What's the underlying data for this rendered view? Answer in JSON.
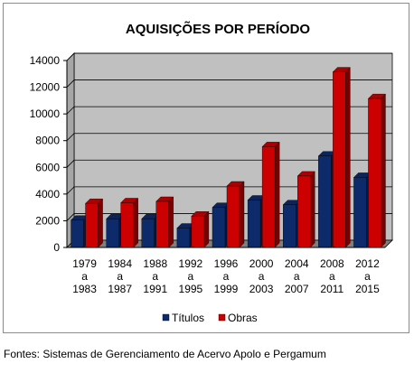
{
  "source_note": "Fontes: Sistemas de Gerenciamento de Acervo Apolo e Pergamum",
  "colors": {
    "titulos": "#0d2a6b",
    "obras": "#cc0000",
    "plot_back": "#c0c0c0",
    "plot_floor": "#7f7f7f"
  },
  "chart_data": {
    "type": "bar",
    "title": "AQUISIÇÕES POR PERÍODO",
    "categories": [
      [
        "1979",
        "a",
        "1983"
      ],
      [
        "1984",
        "a",
        "1987"
      ],
      [
        "1988",
        "a",
        "1991"
      ],
      [
        "1992",
        "a",
        "1995"
      ],
      [
        "1996",
        "a",
        "1999"
      ],
      [
        "2000",
        "a",
        "2003"
      ],
      [
        "2004",
        "a",
        "2007"
      ],
      [
        "2008",
        "a",
        "2011"
      ],
      [
        "2012",
        "a",
        "2015"
      ]
    ],
    "series": [
      {
        "name": "Títulos",
        "values": [
          2050,
          2150,
          2150,
          1450,
          3000,
          3550,
          3200,
          6850,
          5250
        ]
      },
      {
        "name": "Obras",
        "values": [
          3300,
          3350,
          3450,
          2350,
          4600,
          7550,
          5350,
          13150,
          11150
        ]
      }
    ],
    "yticks": [
      "0",
      "2000",
      "4000",
      "6000",
      "8000",
      "10000",
      "12000",
      "14000"
    ],
    "ylim": [
      0,
      14000
    ],
    "grid": true,
    "legend_position": "bottom",
    "style": "3d-clustered-column"
  }
}
